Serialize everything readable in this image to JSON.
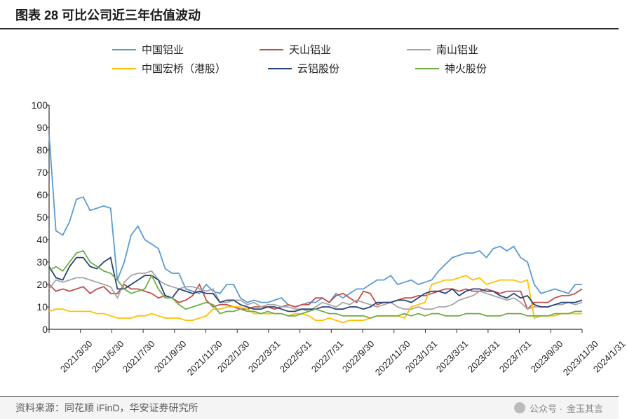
{
  "title": "图表 28 可比公司近三年估值波动",
  "source_label": "资料来源：",
  "source_text": "同花顺 iFinD，华安证券研究所",
  "watermark_prefix": "公众号 ·",
  "watermark_name": "金玉其言",
  "chart": {
    "type": "line",
    "background_color": "#ffffff",
    "grid_color": "none",
    "axis_color": "#333333",
    "label_fontsize": 14,
    "line_width": 1.8,
    "ylim": [
      0,
      100
    ],
    "ytick_step": 10,
    "yticks": [
      0,
      10,
      20,
      30,
      40,
      50,
      60,
      70,
      80,
      90,
      100
    ],
    "x_labels": [
      "2021/3/30",
      "2021/5/30",
      "2021/7/30",
      "2021/9/30",
      "2021/11/30",
      "2022/1/30",
      "2022/3/31",
      "2022/5/31",
      "2022/7/31",
      "2022/9/30",
      "2022/11/30",
      "2023/1/31",
      "2023/3/31",
      "2023/5/31",
      "2023/7/31",
      "2023/9/30",
      "2023/11/30",
      "2024/1/31"
    ],
    "series": [
      {
        "name": "中国铝业",
        "color": "#5b9bd5",
        "values": [
          87,
          44,
          42,
          48,
          58,
          59,
          53,
          54,
          55,
          54,
          22,
          30,
          42,
          46,
          40,
          38,
          36,
          27,
          25,
          25,
          18,
          17,
          16,
          20,
          17,
          16,
          20,
          20,
          14,
          12,
          13,
          12,
          12,
          13,
          14,
          11,
          10,
          11,
          12,
          12,
          14,
          12,
          16,
          14,
          16,
          18,
          18,
          20,
          22,
          22,
          24,
          20,
          21,
          22,
          20,
          21,
          22,
          26,
          29,
          32,
          33,
          34,
          34,
          35,
          32,
          36,
          37,
          35,
          37,
          32,
          30,
          20,
          16,
          17,
          18,
          17,
          16,
          20,
          20
        ]
      },
      {
        "name": "天山铝业",
        "color": "#c0504d",
        "values": [
          20,
          17,
          18,
          17,
          18,
          19,
          16,
          18,
          19,
          16,
          16,
          20,
          18,
          18,
          17,
          16,
          14,
          15,
          14,
          12,
          13,
          15,
          20,
          13,
          10,
          11,
          11,
          10,
          9,
          9,
          10,
          10,
          10,
          9,
          10,
          11,
          10,
          11,
          11,
          14,
          14,
          12,
          15,
          16,
          14,
          12,
          17,
          16,
          11,
          12,
          12,
          13,
          14,
          14,
          15,
          15,
          16,
          17,
          18,
          18,
          17,
          18,
          17,
          17,
          18,
          17,
          16,
          17,
          17,
          17,
          9,
          12,
          12,
          12,
          14,
          15,
          15,
          16,
          18
        ]
      },
      {
        "name": "南山铝业",
        "color": "#a6a6a6",
        "values": [
          18,
          22,
          21,
          22,
          23,
          23,
          22,
          21,
          20,
          19,
          14,
          21,
          24,
          25,
          25,
          26,
          22,
          20,
          19,
          18,
          19,
          19,
          18,
          17,
          18,
          12,
          12,
          13,
          13,
          11,
          12,
          10,
          11,
          11,
          10,
          10,
          9,
          9,
          8,
          10,
          12,
          11,
          10,
          12,
          11,
          13,
          12,
          11,
          10,
          11,
          12,
          10,
          9,
          9,
          10,
          9,
          9,
          10,
          10,
          11,
          13,
          14,
          15,
          17,
          16,
          15,
          14,
          13,
          14,
          12,
          9,
          10,
          10,
          10,
          11,
          11,
          12,
          11,
          12
        ]
      },
      {
        "name": "中国宏桥（港股）",
        "color": "#ffc000",
        "values": [
          8,
          9,
          9,
          8,
          8,
          8,
          8,
          7,
          7,
          6,
          5,
          5,
          5,
          6,
          6,
          7,
          6,
          5,
          5,
          5,
          4,
          4,
          5,
          6,
          9,
          9,
          10,
          10,
          10,
          9,
          7,
          7,
          7,
          7,
          7,
          6,
          7,
          7,
          6,
          4,
          4,
          5,
          4,
          3,
          4,
          4,
          4,
          5,
          6,
          6,
          6,
          6,
          5,
          10,
          11,
          12,
          20,
          21,
          22,
          22,
          23,
          24,
          22,
          23,
          20,
          21,
          22,
          22,
          22,
          21,
          22,
          5,
          6,
          6,
          6,
          7,
          7,
          7,
          7
        ]
      },
      {
        "name": "云铝股份",
        "color": "#264478",
        "values": [
          28,
          23,
          22,
          28,
          32,
          32,
          28,
          27,
          30,
          32,
          18,
          18,
          20,
          22,
          24,
          24,
          22,
          15,
          14,
          18,
          17,
          16,
          17,
          16,
          16,
          12,
          13,
          13,
          11,
          10,
          9,
          9,
          10,
          10,
          9,
          8,
          8,
          9,
          9,
          9,
          10,
          10,
          9,
          9,
          10,
          10,
          9,
          10,
          12,
          12,
          12,
          13,
          13,
          12,
          14,
          16,
          17,
          17,
          16,
          18,
          15,
          17,
          18,
          18,
          17,
          17,
          15,
          14,
          16,
          14,
          15,
          11,
          10,
          10,
          11,
          12,
          12,
          12,
          13
        ]
      },
      {
        "name": "神火股份",
        "color": "#70ad47",
        "values": [
          26,
          28,
          26,
          30,
          34,
          35,
          30,
          28,
          26,
          25,
          22,
          18,
          16,
          17,
          18,
          24,
          18,
          14,
          14,
          11,
          9,
          10,
          11,
          12,
          11,
          7,
          8,
          8,
          9,
          8,
          8,
          7,
          8,
          7,
          7,
          6,
          6,
          7,
          8,
          9,
          8,
          7,
          7,
          6,
          6,
          6,
          6,
          5,
          6,
          6,
          6,
          6,
          7,
          6,
          7,
          6,
          7,
          7,
          6,
          6,
          6,
          7,
          7,
          7,
          6,
          6,
          6,
          7,
          7,
          7,
          6,
          6,
          6,
          6,
          7,
          7,
          7,
          8,
          8
        ]
      }
    ]
  }
}
